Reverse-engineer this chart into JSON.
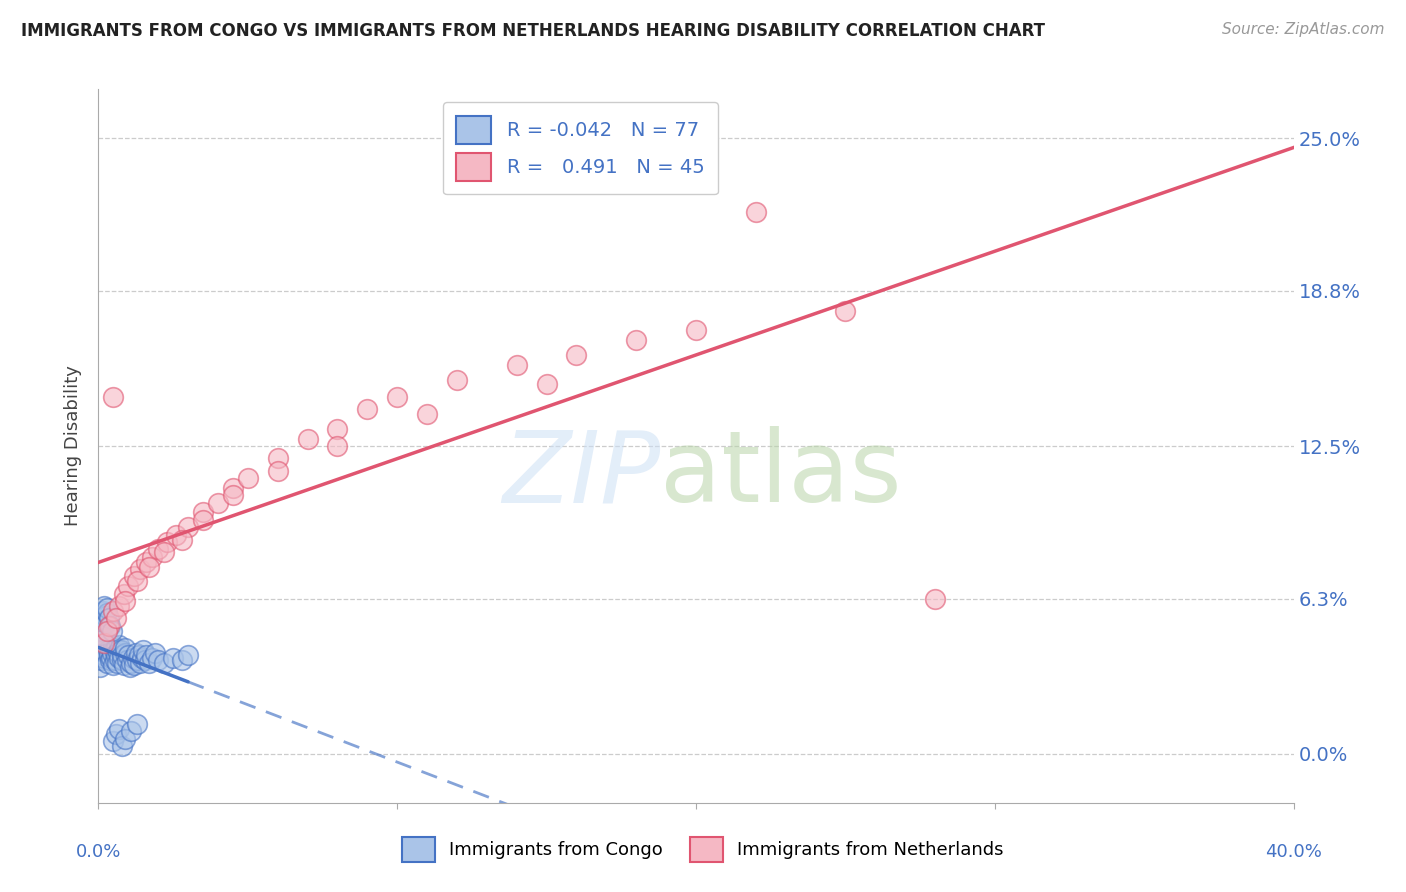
{
  "title": "IMMIGRANTS FROM CONGO VS IMMIGRANTS FROM NETHERLANDS HEARING DISABILITY CORRELATION CHART",
  "source": "Source: ZipAtlas.com",
  "ylabel": "Hearing Disability",
  "yticks_labels": [
    "0.0%",
    "6.3%",
    "12.5%",
    "18.8%",
    "25.0%"
  ],
  "ytick_vals": [
    0.0,
    6.3,
    12.5,
    18.8,
    25.0
  ],
  "xlim": [
    0.0,
    40.0
  ],
  "ylim": [
    -2.0,
    27.0
  ],
  "legend1_label": "R = -0.042   N = 77",
  "legend2_label": "R =   0.491   N = 45",
  "series1_name": "Immigrants from Congo",
  "series2_name": "Immigrants from Netherlands",
  "color_congo_fill": "#aac4e8",
  "color_congo_edge": "#4472c4",
  "color_neth_fill": "#f5b8c4",
  "color_neth_edge": "#e05570",
  "color_line_congo": "#4472c4",
  "color_line_neth": "#e05570",
  "congo_x": [
    0.05,
    0.08,
    0.1,
    0.12,
    0.15,
    0.18,
    0.2,
    0.22,
    0.25,
    0.28,
    0.3,
    0.32,
    0.35,
    0.38,
    0.4,
    0.42,
    0.45,
    0.48,
    0.5,
    0.52,
    0.55,
    0.58,
    0.6,
    0.62,
    0.65,
    0.68,
    0.7,
    0.75,
    0.78,
    0.8,
    0.85,
    0.88,
    0.9,
    0.95,
    1.0,
    1.05,
    1.1,
    1.15,
    1.2,
    1.25,
    1.3,
    1.35,
    1.4,
    1.45,
    1.5,
    1.55,
    1.6,
    1.7,
    1.8,
    1.9,
    2.0,
    2.2,
    2.5,
    2.8,
    3.0,
    0.03,
    0.05,
    0.07,
    0.1,
    0.13,
    0.15,
    0.18,
    0.2,
    0.23,
    0.25,
    0.28,
    0.3,
    0.35,
    0.4,
    0.45,
    0.5,
    0.6,
    0.7,
    0.8,
    0.9,
    1.1,
    1.3
  ],
  "congo_y": [
    3.5,
    4.2,
    3.8,
    4.5,
    4.0,
    4.3,
    3.9,
    4.6,
    4.1,
    4.4,
    3.7,
    4.2,
    4.0,
    3.8,
    4.3,
    3.9,
    4.1,
    4.4,
    3.6,
    4.2,
    3.8,
    4.0,
    4.3,
    3.7,
    4.1,
    4.4,
    3.9,
    4.2,
    3.8,
    4.0,
    3.6,
    4.1,
    4.3,
    3.8,
    4.0,
    3.5,
    3.7,
    3.9,
    3.6,
    4.1,
    3.8,
    4.0,
    3.7,
    3.9,
    4.2,
    3.8,
    4.0,
    3.7,
    3.9,
    4.1,
    3.8,
    3.7,
    3.9,
    3.8,
    4.0,
    5.5,
    5.2,
    5.0,
    4.8,
    4.6,
    5.8,
    5.4,
    6.0,
    5.6,
    5.3,
    5.7,
    5.9,
    5.5,
    5.2,
    5.0,
    0.5,
    0.8,
    1.0,
    0.3,
    0.6,
    0.9,
    1.2
  ],
  "neth_x": [
    0.2,
    0.35,
    0.5,
    0.7,
    0.85,
    1.0,
    1.2,
    1.4,
    1.6,
    1.8,
    2.0,
    2.3,
    2.6,
    3.0,
    3.5,
    4.0,
    4.5,
    5.0,
    6.0,
    7.0,
    8.0,
    9.0,
    10.0,
    12.0,
    14.0,
    16.0,
    18.0,
    20.0,
    22.0,
    25.0,
    0.3,
    0.6,
    0.9,
    1.3,
    1.7,
    2.2,
    2.8,
    3.5,
    4.5,
    6.0,
    8.0,
    11.0,
    15.0,
    28.0,
    0.5
  ],
  "neth_y": [
    4.5,
    5.2,
    5.8,
    6.0,
    6.5,
    6.8,
    7.2,
    7.5,
    7.8,
    8.0,
    8.3,
    8.6,
    8.9,
    9.2,
    9.8,
    10.2,
    10.8,
    11.2,
    12.0,
    12.8,
    13.2,
    14.0,
    14.5,
    15.2,
    15.8,
    16.2,
    16.8,
    17.2,
    22.0,
    18.0,
    5.0,
    5.5,
    6.2,
    7.0,
    7.6,
    8.2,
    8.7,
    9.5,
    10.5,
    11.5,
    12.5,
    13.8,
    15.0,
    6.3,
    14.5
  ]
}
